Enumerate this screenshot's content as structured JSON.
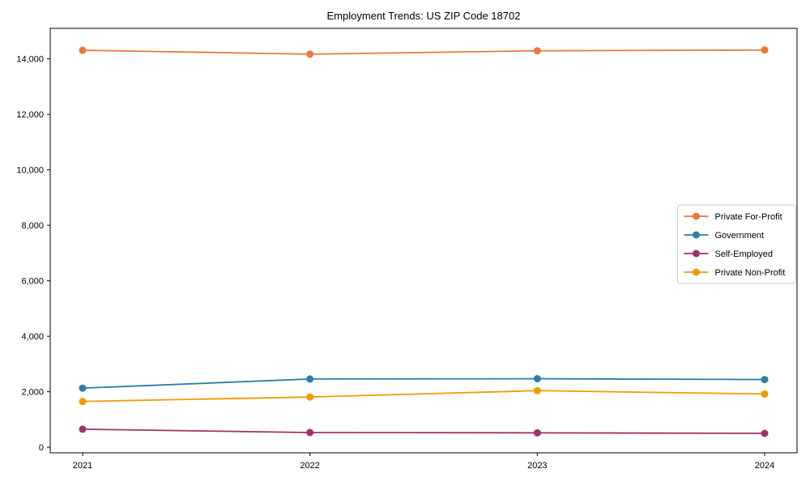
{
  "title": "Employment Trends: US ZIP Code 18702",
  "chart_data": {
    "type": "line",
    "title": "Employment Trends: US ZIP Code 18702",
    "xlabel": "",
    "ylabel": "",
    "categories": [
      "2021",
      "2022",
      "2023",
      "2024"
    ],
    "x": [
      2021,
      2022,
      2023,
      2024
    ],
    "series": [
      {
        "name": "Private For-Profit",
        "color": "#E8793A",
        "values": [
          14310,
          14170,
          14290,
          14320
        ]
      },
      {
        "name": "Government",
        "color": "#2C7FA0",
        "values": [
          2130,
          2460,
          2470,
          2440
        ]
      },
      {
        "name": "Self-Employed",
        "color": "#A03169",
        "values": [
          650,
          530,
          520,
          500
        ]
      },
      {
        "name": "Private Non-Profit",
        "color": "#EF9B00",
        "values": [
          1650,
          1810,
          2040,
          1920
        ]
      }
    ],
    "yticks": [
      0,
      2000,
      4000,
      6000,
      8000,
      10000,
      12000,
      14000
    ],
    "ytick_labels": [
      "0",
      "2,000",
      "4,000",
      "6,000",
      "8,000",
      "10,000",
      "12,000",
      "14,000"
    ],
    "ylim": [
      -200,
      15100
    ],
    "grid": false,
    "legend_position": "center right",
    "marker": "circle",
    "axis_color": "#000000",
    "legend_border_color": "#cccccc",
    "background_color": "#ffffff"
  }
}
